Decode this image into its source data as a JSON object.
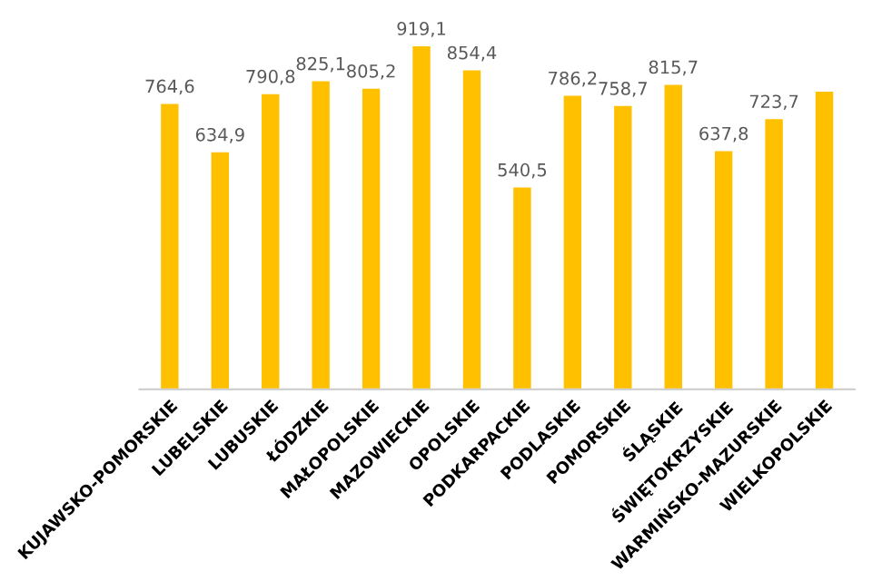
{
  "chart_data": {
    "type": "bar",
    "categories": [
      "KUJAWSKO-POMORSKIE",
      "LUBELSKIE",
      "LUBUSKIE",
      "ŁÓDZKIE",
      "MAŁOPOLSKIE",
      "MAZOWIECKIE",
      "OPOLSKIE",
      "PODKARPACKIE",
      "PODLASKIE",
      "POMORSKIE",
      "ŚLĄSKIE",
      "ŚWIĘTOKRZYSKIE",
      "WARMIŃSKO-MAZURSKIE",
      "WIELKOPOLSKIE"
    ],
    "values": [
      764.6,
      634.9,
      790.8,
      825.1,
      805.2,
      919.1,
      854.4,
      540.5,
      786.2,
      758.7,
      815.7,
      637.8,
      723.7,
      797
    ],
    "value_labels": [
      "764,6",
      "634,9",
      "790,8",
      "825,1",
      "805,2",
      "919,1",
      "854,4",
      "540,5",
      "786,2",
      "758,7",
      "815,7",
      "637,8",
      "723,7",
      null
    ],
    "color": "#ffc000",
    "tick_labels": "x",
    "grid": false,
    "legend": false
  }
}
